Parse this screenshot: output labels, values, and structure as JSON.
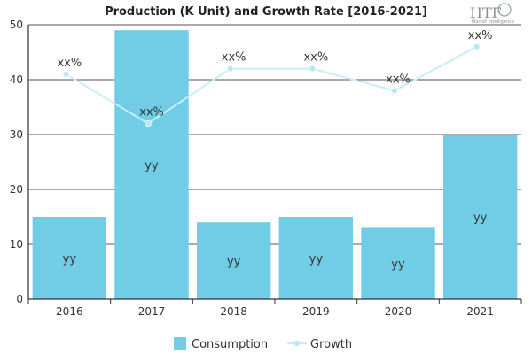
{
  "brand": {
    "logo_text": "HTF",
    "logo_subtext": "Market Intelligence"
  },
  "colors": {
    "bar": "#70cde5",
    "line": "#c8eef7",
    "marker": "#b9e8f4",
    "axis": "#333333",
    "grid": "#555555"
  },
  "chart_data": {
    "type": "bar",
    "title": "Production (K Unit) and Growth Rate [2016-2021]",
    "categories": [
      "2016",
      "2017",
      "2018",
      "2019",
      "2020",
      "2021"
    ],
    "ylim": [
      0,
      50
    ],
    "yticks": [
      0,
      10,
      20,
      30,
      40,
      50
    ],
    "grid": true,
    "legend_position": "bottom",
    "series": [
      {
        "name": "Consumption",
        "type": "bar",
        "values": [
          15,
          49,
          14,
          15,
          13,
          30
        ],
        "labels": [
          "yy",
          "yy",
          "yy",
          "yy",
          "yy",
          "yy"
        ]
      },
      {
        "name": "Growth",
        "type": "line",
        "values": [
          41,
          32,
          42,
          42,
          38,
          46
        ],
        "labels": [
          "xx%",
          "xx%",
          "xx%",
          "xx%",
          "xx%",
          "xx%"
        ]
      }
    ]
  }
}
